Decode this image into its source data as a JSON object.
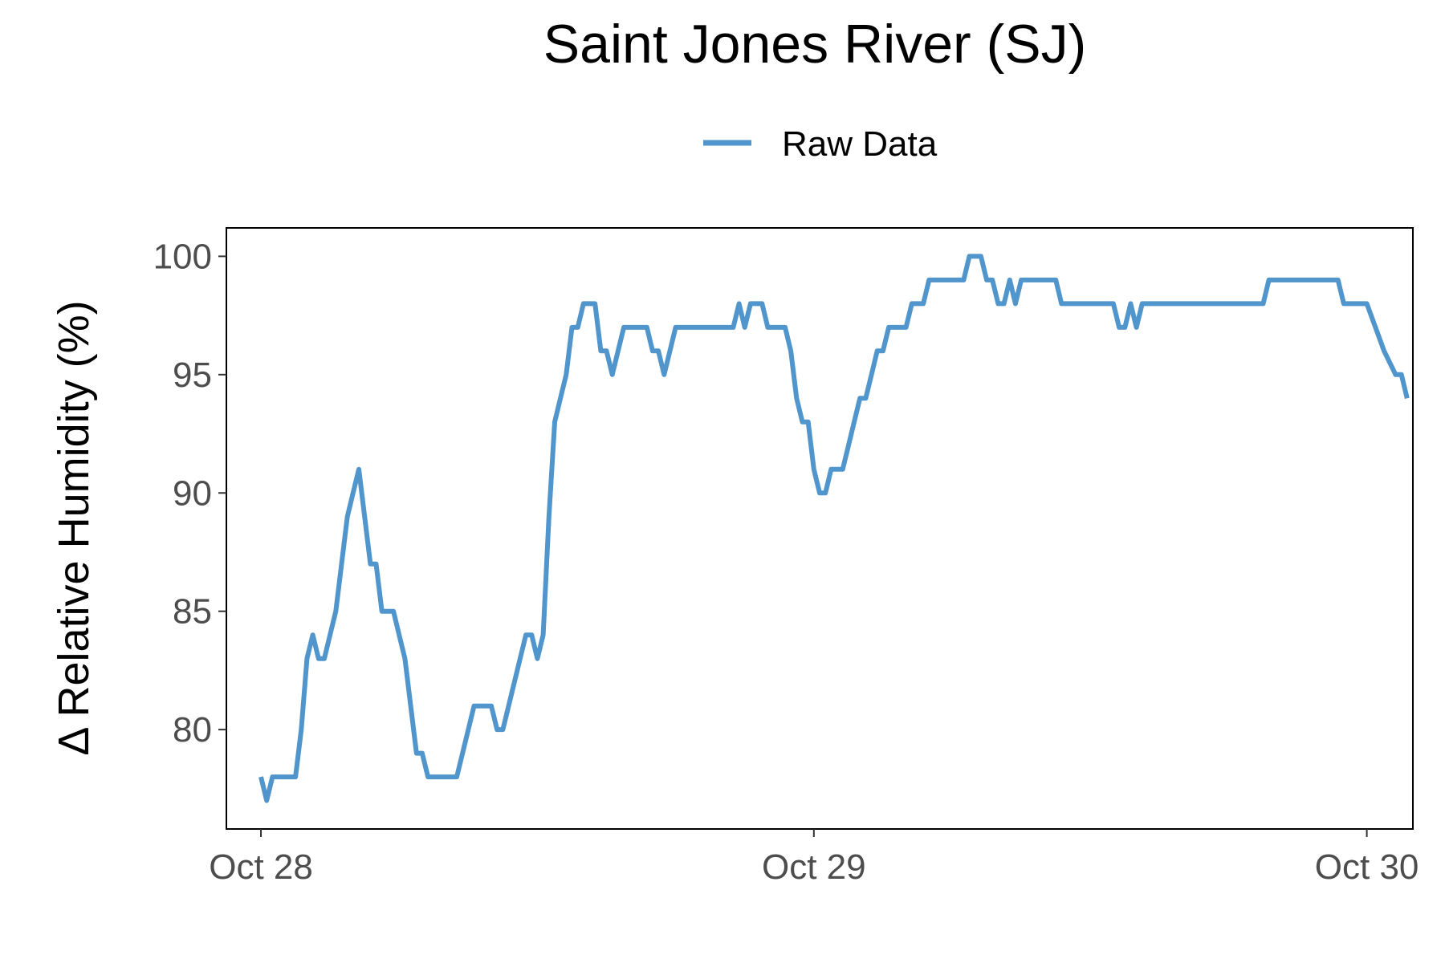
{
  "chart_data": {
    "type": "line",
    "title": "Saint Jones River (SJ)",
    "xlabel": "",
    "ylabel": "Δ Relative Humidity (%)",
    "legend_position": "top",
    "grid": false,
    "x_tick_labels": [
      "Oct 28",
      "Oct 29",
      "Oct 30"
    ],
    "y_ticks": [
      80,
      85,
      90,
      95,
      100
    ],
    "xlim": [
      "2023-10-27T22:30",
      "2023-10-30T02:00"
    ],
    "ylim": [
      75.8,
      101.2
    ],
    "series": [
      {
        "name": "Raw Data",
        "color": "#5095cc",
        "points": [
          [
            "2023-10-28T00:00",
            78
          ],
          [
            "2023-10-28T00:15",
            77
          ],
          [
            "2023-10-28T00:30",
            78
          ],
          [
            "2023-10-28T01:00",
            78
          ],
          [
            "2023-10-28T01:30",
            78
          ],
          [
            "2023-10-28T01:45",
            80
          ],
          [
            "2023-10-28T02:00",
            83
          ],
          [
            "2023-10-28T02:15",
            84
          ],
          [
            "2023-10-28T02:30",
            83
          ],
          [
            "2023-10-28T02:45",
            83
          ],
          [
            "2023-10-28T03:00",
            84
          ],
          [
            "2023-10-28T03:15",
            85
          ],
          [
            "2023-10-28T03:30",
            87
          ],
          [
            "2023-10-28T03:45",
            89
          ],
          [
            "2023-10-28T04:00",
            90
          ],
          [
            "2023-10-28T04:15",
            91
          ],
          [
            "2023-10-28T04:30",
            89
          ],
          [
            "2023-10-28T04:45",
            87
          ],
          [
            "2023-10-28T05:00",
            87
          ],
          [
            "2023-10-28T05:15",
            85
          ],
          [
            "2023-10-28T05:30",
            85
          ],
          [
            "2023-10-28T05:45",
            85
          ],
          [
            "2023-10-28T06:00",
            84
          ],
          [
            "2023-10-28T06:15",
            83
          ],
          [
            "2023-10-28T06:30",
            81
          ],
          [
            "2023-10-28T06:45",
            79
          ],
          [
            "2023-10-28T07:00",
            79
          ],
          [
            "2023-10-28T07:15",
            78
          ],
          [
            "2023-10-28T08:00",
            78
          ],
          [
            "2023-10-28T08:30",
            78
          ],
          [
            "2023-10-28T09:15",
            81
          ],
          [
            "2023-10-28T10:00",
            81
          ],
          [
            "2023-10-28T10:15",
            80
          ],
          [
            "2023-10-28T10:30",
            80
          ],
          [
            "2023-10-28T11:15",
            83
          ],
          [
            "2023-10-28T11:30",
            84
          ],
          [
            "2023-10-28T11:45",
            84
          ],
          [
            "2023-10-28T12:00",
            83
          ],
          [
            "2023-10-28T12:15",
            84
          ],
          [
            "2023-10-28T12:30",
            89
          ],
          [
            "2023-10-28T12:45",
            93
          ],
          [
            "2023-10-28T13:00",
            94
          ],
          [
            "2023-10-28T13:15",
            95
          ],
          [
            "2023-10-28T13:30",
            97
          ],
          [
            "2023-10-28T13:45",
            97
          ],
          [
            "2023-10-28T14:00",
            98
          ],
          [
            "2023-10-28T14:30",
            98
          ],
          [
            "2023-10-28T14:45",
            96
          ],
          [
            "2023-10-28T15:00",
            96
          ],
          [
            "2023-10-28T15:15",
            95
          ],
          [
            "2023-10-28T15:30",
            96
          ],
          [
            "2023-10-28T15:45",
            97
          ],
          [
            "2023-10-28T16:45",
            97
          ],
          [
            "2023-10-28T17:00",
            96
          ],
          [
            "2023-10-28T17:15",
            96
          ],
          [
            "2023-10-28T17:30",
            95
          ],
          [
            "2023-10-28T17:45",
            96
          ],
          [
            "2023-10-28T18:00",
            97
          ],
          [
            "2023-10-28T20:30",
            97
          ],
          [
            "2023-10-28T20:45",
            98
          ],
          [
            "2023-10-28T21:00",
            97
          ],
          [
            "2023-10-28T21:15",
            98
          ],
          [
            "2023-10-28T21:45",
            98
          ],
          [
            "2023-10-28T22:00",
            97
          ],
          [
            "2023-10-28T22:45",
            97
          ],
          [
            "2023-10-28T23:00",
            96
          ],
          [
            "2023-10-28T23:15",
            94
          ],
          [
            "2023-10-28T23:30",
            93
          ],
          [
            "2023-10-28T23:45",
            93
          ],
          [
            "2023-10-29T00:00",
            91
          ],
          [
            "2023-10-29T00:15",
            90
          ],
          [
            "2023-10-29T00:30",
            90
          ],
          [
            "2023-10-29T00:45",
            91
          ],
          [
            "2023-10-29T01:15",
            91
          ],
          [
            "2023-10-29T01:30",
            92
          ],
          [
            "2023-10-29T01:45",
            93
          ],
          [
            "2023-10-29T02:00",
            94
          ],
          [
            "2023-10-29T02:15",
            94
          ],
          [
            "2023-10-29T02:30",
            95
          ],
          [
            "2023-10-29T02:45",
            96
          ],
          [
            "2023-10-29T03:00",
            96
          ],
          [
            "2023-10-29T03:15",
            97
          ],
          [
            "2023-10-29T04:00",
            97
          ],
          [
            "2023-10-29T04:15",
            98
          ],
          [
            "2023-10-29T04:45",
            98
          ],
          [
            "2023-10-29T05:00",
            99
          ],
          [
            "2023-10-29T06:30",
            99
          ],
          [
            "2023-10-29T06:45",
            100
          ],
          [
            "2023-10-29T07:15",
            100
          ],
          [
            "2023-10-29T07:30",
            99
          ],
          [
            "2023-10-29T07:45",
            99
          ],
          [
            "2023-10-29T08:00",
            98
          ],
          [
            "2023-10-29T08:15",
            98
          ],
          [
            "2023-10-29T08:30",
            99
          ],
          [
            "2023-10-29T08:45",
            98
          ],
          [
            "2023-10-29T09:00",
            99
          ],
          [
            "2023-10-29T10:30",
            99
          ],
          [
            "2023-10-29T10:45",
            98
          ],
          [
            "2023-10-29T13:00",
            98
          ],
          [
            "2023-10-29T13:15",
            97
          ],
          [
            "2023-10-29T13:30",
            97
          ],
          [
            "2023-10-29T13:45",
            98
          ],
          [
            "2023-10-29T14:00",
            97
          ],
          [
            "2023-10-29T14:15",
            98
          ],
          [
            "2023-10-29T19:30",
            98
          ],
          [
            "2023-10-29T19:45",
            99
          ],
          [
            "2023-10-29T22:45",
            99
          ],
          [
            "2023-10-29T23:00",
            98
          ],
          [
            "2023-10-29T23:30",
            98
          ],
          [
            "2023-10-29T24:00",
            98
          ],
          [
            "2023-10-30T00:00",
            98
          ],
          [
            "2023-10-30T00:45",
            96
          ],
          [
            "2023-10-30T01:15",
            95
          ],
          [
            "2023-10-30T01:30",
            95
          ],
          [
            "2023-10-30T01:45",
            94
          ]
        ]
      }
    ]
  }
}
